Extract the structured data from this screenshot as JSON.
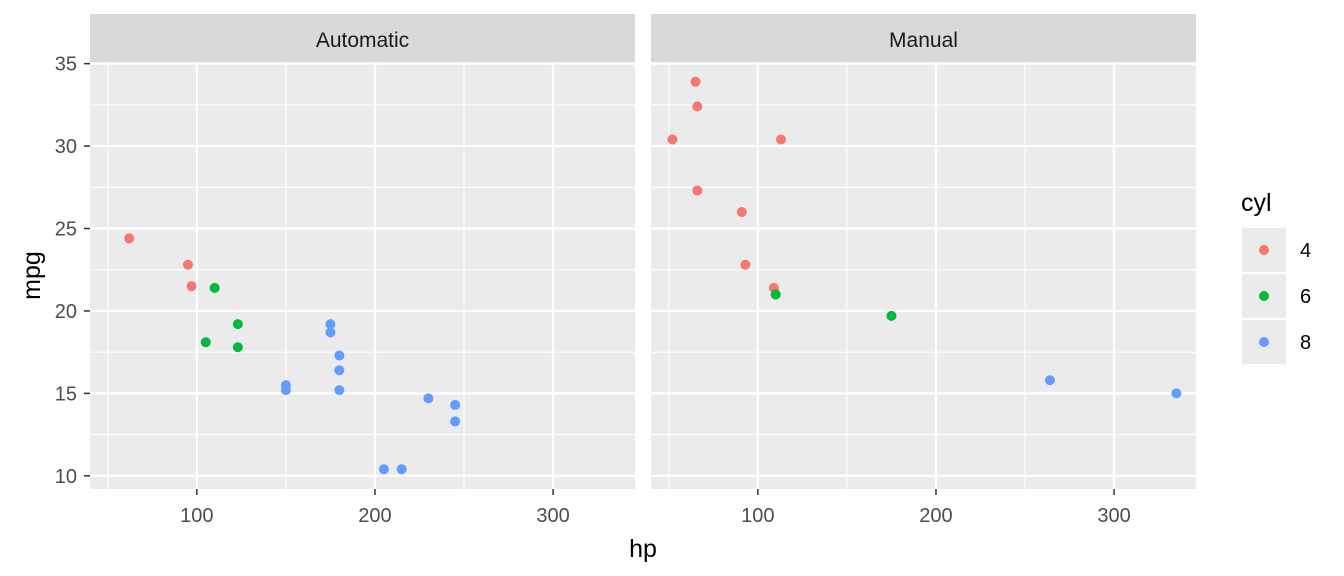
{
  "chart_data": {
    "type": "scatter",
    "xlabel": "hp",
    "ylabel": "mpg",
    "xlim": [
      40,
      346
    ],
    "ylim": [
      9.2,
      35.1
    ],
    "x_ticks": [
      100,
      200,
      300
    ],
    "y_ticks": [
      10,
      15,
      20,
      25,
      30,
      35
    ],
    "grid": true,
    "legend": {
      "title": "cyl",
      "placement": "right",
      "entries": [
        {
          "label": "4",
          "color": "#F8766D"
        },
        {
          "label": "6",
          "color": "#00BA38"
        },
        {
          "label": "8",
          "color": "#619CFF"
        }
      ]
    },
    "panels": [
      {
        "title": "Automatic",
        "points": [
          {
            "x": 62,
            "y": 24.4,
            "cyl": "4"
          },
          {
            "x": 95,
            "y": 22.8,
            "cyl": "4"
          },
          {
            "x": 97,
            "y": 21.5,
            "cyl": "4"
          },
          {
            "x": 110,
            "y": 21.4,
            "cyl": "6"
          },
          {
            "x": 105,
            "y": 18.1,
            "cyl": "6"
          },
          {
            "x": 123,
            "y": 19.2,
            "cyl": "6"
          },
          {
            "x": 123,
            "y": 17.8,
            "cyl": "6"
          },
          {
            "x": 175,
            "y": 18.7,
            "cyl": "8"
          },
          {
            "x": 245,
            "y": 14.3,
            "cyl": "8"
          },
          {
            "x": 180,
            "y": 16.4,
            "cyl": "8"
          },
          {
            "x": 180,
            "y": 17.3,
            "cyl": "8"
          },
          {
            "x": 180,
            "y": 15.2,
            "cyl": "8"
          },
          {
            "x": 205,
            "y": 10.4,
            "cyl": "8"
          },
          {
            "x": 215,
            "y": 10.4,
            "cyl": "8"
          },
          {
            "x": 230,
            "y": 14.7,
            "cyl": "8"
          },
          {
            "x": 150,
            "y": 15.5,
            "cyl": "8"
          },
          {
            "x": 150,
            "y": 15.2,
            "cyl": "8"
          },
          {
            "x": 245,
            "y": 13.3,
            "cyl": "8"
          },
          {
            "x": 175,
            "y": 19.2,
            "cyl": "8"
          }
        ]
      },
      {
        "title": "Manual",
        "points": [
          {
            "x": 66,
            "y": 32.4,
            "cyl": "4"
          },
          {
            "x": 52,
            "y": 30.4,
            "cyl": "4"
          },
          {
            "x": 65,
            "y": 33.9,
            "cyl": "4"
          },
          {
            "x": 66,
            "y": 27.3,
            "cyl": "4"
          },
          {
            "x": 91,
            "y": 26.0,
            "cyl": "4"
          },
          {
            "x": 113,
            "y": 30.4,
            "cyl": "4"
          },
          {
            "x": 93,
            "y": 22.8,
            "cyl": "4"
          },
          {
            "x": 109,
            "y": 21.4,
            "cyl": "4"
          },
          {
            "x": 110,
            "y": 21.0,
            "cyl": "6"
          },
          {
            "x": 110,
            "y": 21.0,
            "cyl": "6"
          },
          {
            "x": 175,
            "y": 19.7,
            "cyl": "6"
          },
          {
            "x": 264,
            "y": 15.8,
            "cyl": "8"
          },
          {
            "x": 335,
            "y": 15.0,
            "cyl": "8"
          }
        ]
      }
    ]
  }
}
